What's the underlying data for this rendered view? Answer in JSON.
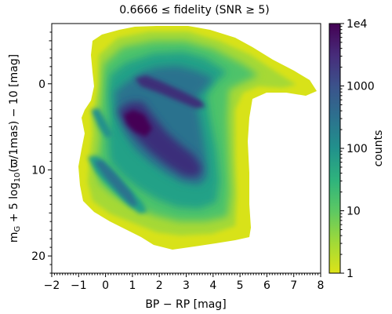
{
  "chart_data": {
    "type": "heatmap",
    "title": "0.6666 ≤ fidelity (SNR ≥ 5)",
    "xlabel": "BP − RP [mag]",
    "ylabel": "m_G + 5 log10(ϖ/1mas) − 10 [mag]",
    "ylabel_parts": {
      "m": "m",
      "sub_G": "G",
      "mid": " + 5 log",
      "sub_10": "10",
      "tail": "(ϖ/1mas) − 10 [mag]"
    },
    "xlim": [
      -2,
      8
    ],
    "ylim": [
      22,
      -7
    ],
    "y_inverted": true,
    "x_ticks": [
      "−2",
      "−1",
      "0",
      "1",
      "2",
      "3",
      "4",
      "5",
      "6",
      "7",
      "8"
    ],
    "y_ticks": [
      "0",
      "10",
      "20"
    ],
    "colorbar": {
      "label": "counts",
      "scale": "log",
      "range": [
        1,
        10000
      ],
      "ticks": [
        "1",
        "10",
        "100",
        "1000",
        "1e4"
      ],
      "colormap": "viridis_r"
    },
    "colors": {
      "low": "#d8e219",
      "mid": "#21918c",
      "high": "#440154"
    }
  }
}
